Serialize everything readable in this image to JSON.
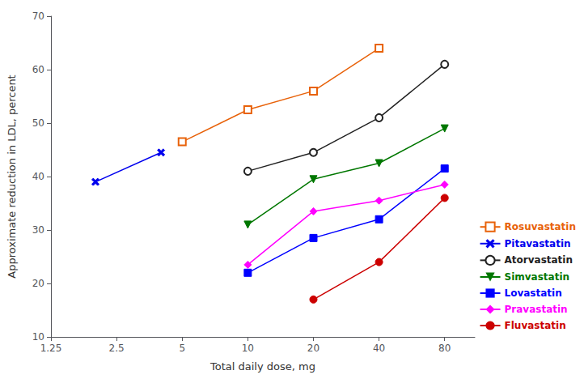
{
  "chart_data": {
    "type": "line",
    "xlabel": "Total daily dose, mg",
    "ylabel": "Approximate reduction in LDL, percent",
    "log": "x",
    "xlim": [
      1.25,
      110
    ],
    "xticks": [
      1.25,
      2.5,
      5,
      10,
      20,
      40,
      80
    ],
    "ylim": [
      10,
      70
    ],
    "yticks": [
      10,
      20,
      30,
      40,
      50,
      60,
      70
    ],
    "grid": false,
    "legend": "lower right",
    "series": [
      {
        "name": "Rosuvastatin",
        "color": "#E8620A",
        "marker": "square-open",
        "x": [
          5,
          10,
          20,
          40
        ],
        "values": [
          46.5,
          52.5,
          56,
          64
        ]
      },
      {
        "name": "Pitavastatin",
        "color": "#0000EE",
        "marker": "x",
        "x": [
          2,
          4
        ],
        "values": [
          39,
          44.5
        ]
      },
      {
        "name": "Atorvastatin",
        "color": "#222222",
        "marker": "circle-open",
        "x": [
          10,
          20,
          40,
          80
        ],
        "values": [
          41,
          44.5,
          51,
          61
        ]
      },
      {
        "name": "Simvastatin",
        "color": "#007700",
        "marker": "triangle-down",
        "x": [
          10,
          20,
          40,
          80
        ],
        "values": [
          31,
          39.5,
          42.5,
          49
        ]
      },
      {
        "name": "Lovastatin",
        "color": "#0000FF",
        "marker": "square",
        "x": [
          10,
          20,
          40,
          80
        ],
        "values": [
          22,
          28.5,
          32,
          41.5
        ]
      },
      {
        "name": "Pravastatin",
        "color": "#FF00FF",
        "marker": "diamond",
        "x": [
          10,
          20,
          40,
          80
        ],
        "values": [
          23.5,
          33.5,
          35.5,
          38.5
        ]
      },
      {
        "name": "Fluvastatin",
        "color": "#CC0000",
        "marker": "circle",
        "x": [
          20,
          40,
          80
        ],
        "values": [
          17,
          24,
          36
        ]
      }
    ]
  }
}
